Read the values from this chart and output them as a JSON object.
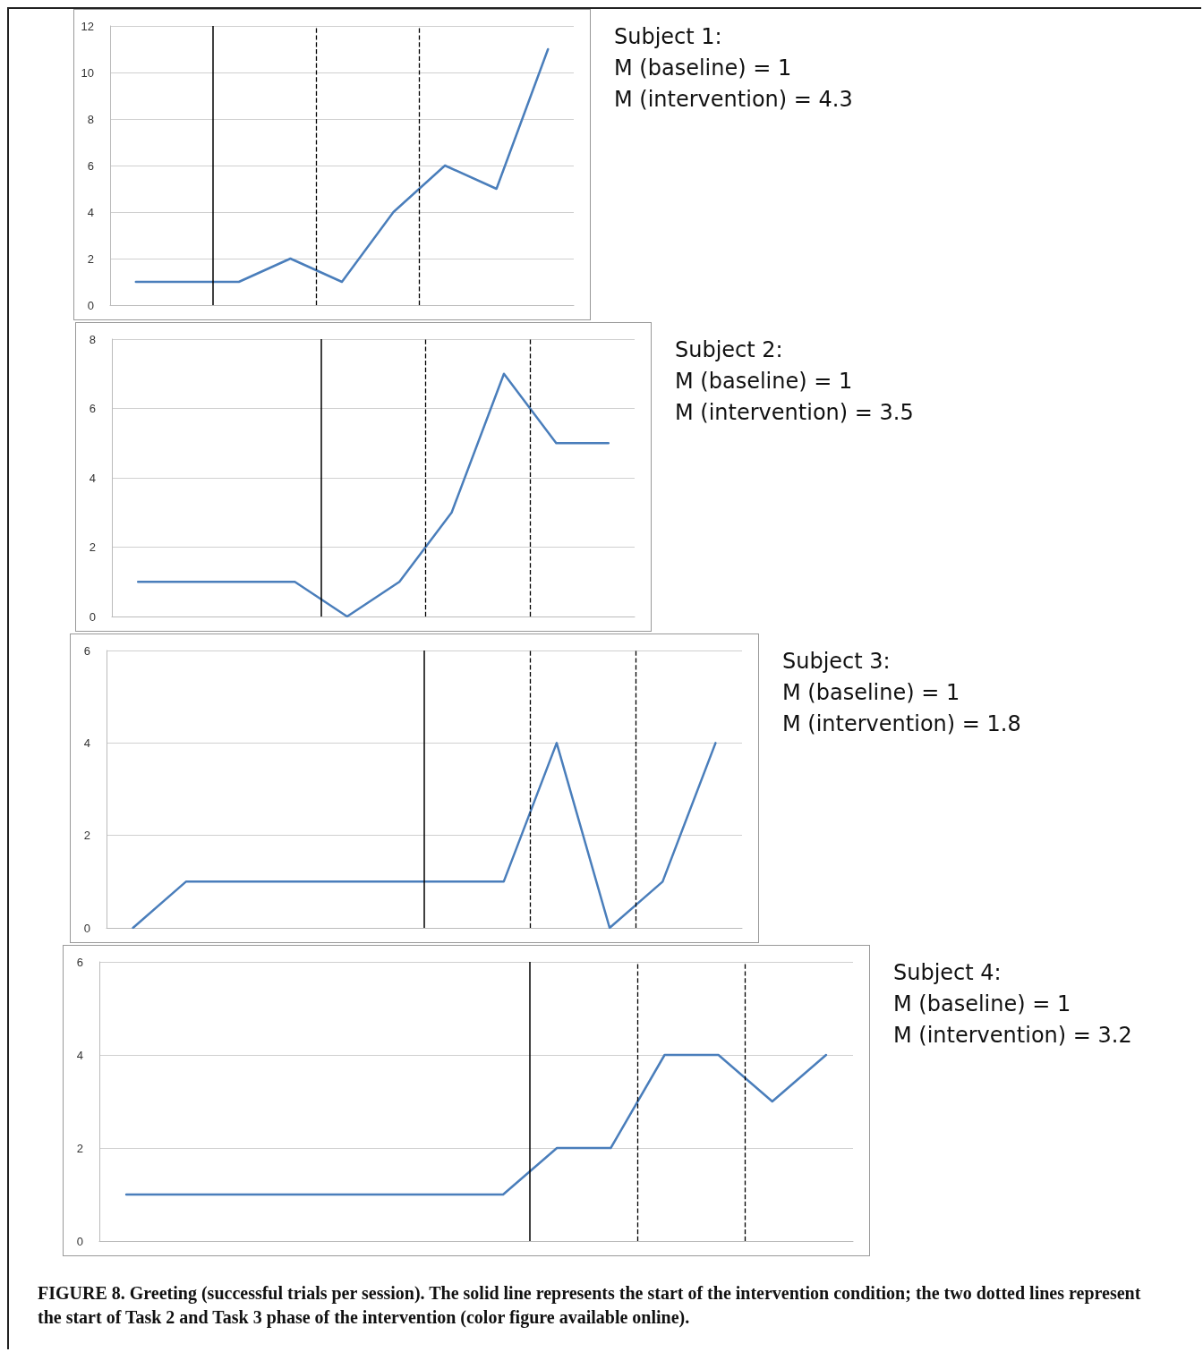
{
  "chart_data": [
    {
      "type": "line",
      "categories": [
        null,
        null,
        null,
        null,
        null,
        null,
        null,
        null,
        null
      ],
      "values": [
        1,
        1,
        1,
        2,
        1,
        4,
        6,
        5,
        11
      ],
      "color": "#4a7ebb",
      "ylim": [
        0,
        12
      ],
      "yticks": [
        0,
        2,
        4,
        6,
        8,
        10,
        12
      ],
      "grid": "y",
      "tick_labels": "y",
      "marker": "none",
      "annotations": [
        "Subject 1:",
        "M (baseline) = 1",
        "M (intervention) = 4.3"
      ]
    },
    {
      "type": "line",
      "categories": [
        null,
        null,
        null,
        null,
        null,
        null,
        null,
        null,
        null,
        null
      ],
      "values": [
        1,
        1,
        1,
        1,
        0,
        1,
        3,
        7,
        5,
        5
      ],
      "color": "#4a7ebb",
      "ylim": [
        0,
        8
      ],
      "yticks": [
        0,
        2,
        4,
        6,
        8
      ],
      "grid": "y",
      "tick_labels": "y",
      "marker": "none",
      "annotations": [
        "Subject 2:",
        "M (baseline) = 1",
        "M (intervention) =  3.5"
      ]
    },
    {
      "type": "line",
      "categories": [
        null,
        null,
        null,
        null,
        null,
        null,
        null,
        null,
        null,
        null,
        null,
        null
      ],
      "values": [
        0,
        1,
        1,
        1,
        1,
        1,
        1,
        1,
        4,
        0,
        1,
        4
      ],
      "color": "#4a7ebb",
      "ylim": [
        0,
        6
      ],
      "yticks": [
        0,
        2,
        4,
        6
      ],
      "grid": "y",
      "tick_labels": "y",
      "marker": "none",
      "annotations": [
        "Subject 3:",
        "M (baseline) = 1",
        "M (intervention) =  1.8"
      ]
    },
    {
      "type": "line",
      "categories": [
        null,
        null,
        null,
        null,
        null,
        null,
        null,
        null,
        null,
        null,
        null,
        null,
        null,
        null
      ],
      "values": [
        1,
        1,
        1,
        1,
        1,
        1,
        1,
        1,
        2,
        2,
        4,
        4,
        3,
        4
      ],
      "color": "#4a7ebb",
      "ylim": [
        0,
        6
      ],
      "yticks": [
        0,
        2,
        4,
        6
      ],
      "grid": "y",
      "tick_labels": "y",
      "marker": "none",
      "annotations": [
        "Subject 4:",
        "M (baseline) = 1",
        "M (intervention) =  3.2"
      ]
    },
    {
      "type": "other",
      "annotations": [
        "FIGURE 8. Greeting (successful trials per session). The solid line represents the start of the intervention condition; the two dotted lines represent the start of Task 2 and Task 3 phase of the intervention (color figure available online)."
      ]
    }
  ]
}
